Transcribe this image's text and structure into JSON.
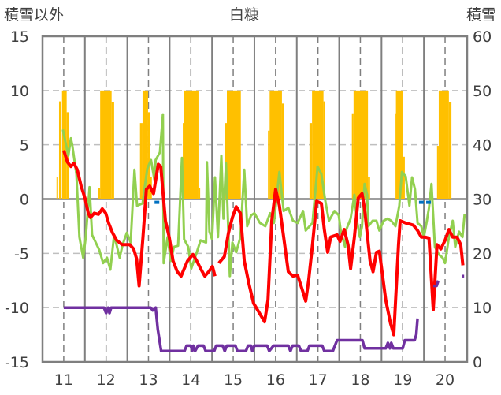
{
  "chart_data": {
    "type": "line",
    "title": "白糠",
    "ylabel_left": "積雪以外",
    "ylabel_right": "積雪",
    "xlim": [
      10.5,
      20.52
    ],
    "ylim_left": [
      -15,
      15
    ],
    "ylim_right": [
      0,
      60
    ],
    "x_ticks": [
      11,
      12,
      13,
      14,
      15,
      16,
      17,
      18,
      19,
      20
    ],
    "x_tick_labels": [
      "11",
      "12",
      "13",
      "14",
      "15",
      "16",
      "17",
      "18",
      "19",
      "20"
    ],
    "y_left_ticks": [
      15,
      10,
      5,
      0,
      -5,
      -10,
      -15
    ],
    "y_left_tick_labels": [
      "15",
      "10",
      "5",
      "0",
      "-5",
      "-10",
      "-15"
    ],
    "y_right_ticks": [
      60,
      50,
      40,
      30,
      20,
      10,
      0
    ],
    "y_right_tick_labels": [
      "60",
      "50",
      "40",
      "30",
      "20",
      "10",
      "0"
    ],
    "grid": true,
    "colors": {
      "sunshine": "#FFC000",
      "temperature": "#FF0000",
      "other": "#92D050",
      "snow": "#7030A0",
      "precip": "#0070C0",
      "grid": "#7F7F7F"
    },
    "sunshine_bars": [
      [
        10.83,
        10.85,
        2
      ],
      [
        10.89,
        10.93,
        9
      ],
      [
        10.96,
        11.07,
        10
      ],
      [
        11.07,
        11.13,
        8
      ],
      [
        11.82,
        11.86,
        1
      ],
      [
        11.86,
        12.13,
        10
      ],
      [
        12.13,
        12.19,
        8.9
      ],
      [
        12.8,
        12.86,
        7
      ],
      [
        12.86,
        12.99,
        10
      ],
      [
        12.99,
        13.03,
        8
      ],
      [
        13.03,
        13.08,
        2
      ],
      [
        13.81,
        13.84,
        7
      ],
      [
        13.84,
        14.18,
        10
      ],
      [
        14.18,
        14.22,
        1
      ],
      [
        14.81,
        14.85,
        7
      ],
      [
        14.85,
        15.18,
        10
      ],
      [
        15.82,
        15.86,
        6.3
      ],
      [
        15.86,
        16.15,
        10
      ],
      [
        16.15,
        16.19,
        8.8
      ],
      [
        16.8,
        16.86,
        7
      ],
      [
        16.86,
        17.13,
        10
      ],
      [
        17.13,
        17.17,
        9
      ],
      [
        17.8,
        17.84,
        7.9
      ],
      [
        17.84,
        18.18,
        10
      ],
      [
        18.18,
        18.23,
        2
      ],
      [
        18.81,
        18.84,
        7.9
      ],
      [
        18.84,
        19.01,
        10
      ],
      [
        19.01,
        19.05,
        3.9
      ],
      [
        19.81,
        19.85,
        4.9
      ],
      [
        19.85,
        20.09,
        10
      ],
      [
        20.09,
        20.15,
        8.9
      ]
    ],
    "temperature": [
      [
        11.0,
        4.5
      ],
      [
        11.09,
        3.4
      ],
      [
        11.17,
        3.0
      ],
      [
        11.24,
        3.3
      ],
      [
        11.32,
        2.7
      ],
      [
        11.41,
        1.2
      ],
      [
        11.5,
        0.1
      ],
      [
        11.58,
        -1.3
      ],
      [
        11.63,
        -1.7
      ],
      [
        11.72,
        -1.3
      ],
      [
        11.82,
        -1.4
      ],
      [
        11.91,
        -0.9
      ],
      [
        11.99,
        -1.3
      ],
      [
        12.06,
        -2.2
      ],
      [
        12.15,
        -3.1
      ],
      [
        12.25,
        -3.8
      ],
      [
        12.38,
        -4.2
      ],
      [
        12.56,
        -4.2
      ],
      [
        12.65,
        -4.6
      ],
      [
        12.72,
        -5.5
      ],
      [
        12.78,
        -8.0
      ],
      [
        12.87,
        -3.5
      ],
      [
        12.95,
        0.9
      ],
      [
        13.03,
        1.2
      ],
      [
        13.12,
        0.5
      ],
      [
        13.23,
        3.2
      ],
      [
        13.29,
        3.0
      ],
      [
        13.4,
        -2.0
      ],
      [
        13.49,
        -3.5
      ],
      [
        13.58,
        -5.7
      ],
      [
        13.68,
        -6.7
      ],
      [
        13.77,
        -7.1
      ],
      [
        13.92,
        -5.7
      ],
      [
        14.05,
        -5.1
      ],
      [
        14.14,
        -5.7
      ],
      [
        14.23,
        -6.4
      ],
      [
        14.33,
        -7.1
      ],
      [
        14.42,
        -6.7
      ],
      [
        14.51,
        -6.2
      ],
      [
        14.57,
        -7.1
      ],
      null,
      [
        14.66,
        -5.9
      ],
      [
        14.79,
        -5.3
      ],
      [
        14.89,
        -3.1
      ],
      [
        14.98,
        -1.7
      ],
      [
        15.07,
        -0.7
      ],
      [
        15.17,
        -1.3
      ],
      [
        15.26,
        -5.7
      ],
      [
        15.37,
        -7.8
      ],
      [
        15.48,
        -9.6
      ],
      [
        15.62,
        -10.5
      ],
      [
        15.74,
        -11.3
      ],
      [
        15.82,
        -9.3
      ],
      [
        15.91,
        -2.0
      ],
      [
        16.0,
        0.9
      ],
      [
        16.09,
        -0.6
      ],
      [
        16.19,
        -3.5
      ],
      [
        16.3,
        -6.7
      ],
      [
        16.41,
        -7.1
      ],
      [
        16.52,
        -7.0
      ],
      [
        16.65,
        -8.6
      ],
      [
        16.71,
        -9.4
      ],
      [
        16.78,
        -7.5
      ],
      [
        16.87,
        -4.2
      ],
      [
        16.97,
        -0.2
      ],
      [
        17.08,
        -0.4
      ],
      [
        17.15,
        -2.8
      ],
      [
        17.23,
        -4.9
      ],
      [
        17.3,
        -3.5
      ],
      [
        17.45,
        -3.3
      ],
      [
        17.52,
        -3.9
      ],
      [
        17.62,
        -2.8
      ],
      [
        17.71,
        -4.2
      ],
      [
        17.77,
        -6.4
      ],
      [
        17.86,
        -3.5
      ],
      [
        17.95,
        0.1
      ],
      [
        18.04,
        0.5
      ],
      [
        18.1,
        -0.9
      ],
      [
        18.23,
        -5.7
      ],
      [
        18.3,
        -6.7
      ],
      [
        18.38,
        -4.9
      ],
      [
        18.45,
        -4.8
      ],
      [
        18.6,
        -9.3
      ],
      [
        18.71,
        -11.4
      ],
      [
        18.79,
        -12.5
      ],
      [
        18.9,
        -4.2
      ],
      [
        18.94,
        -2.0
      ],
      [
        19.07,
        -2.2
      ],
      [
        19.25,
        -2.4
      ],
      [
        19.35,
        -2.9
      ],
      [
        19.44,
        -3.5
      ],
      [
        19.53,
        -3.5
      ],
      [
        19.62,
        -3.6
      ],
      [
        19.72,
        -10.2
      ],
      [
        19.81,
        -4.2
      ],
      [
        19.9,
        -4.6
      ],
      [
        20.0,
        -3.8
      ],
      [
        20.09,
        -2.8
      ],
      [
        20.18,
        -3.5
      ],
      [
        20.28,
        -3.5
      ],
      [
        20.37,
        -4.2
      ],
      [
        20.42,
        -6.1
      ]
    ],
    "other": [
      [
        10.98,
        6.4
      ],
      [
        11.11,
        4.0
      ],
      [
        11.17,
        5.6
      ],
      [
        11.2,
        5.0
      ],
      [
        11.3,
        2.3
      ],
      [
        11.37,
        -3.5
      ],
      [
        11.46,
        -5.4
      ],
      [
        11.52,
        -3.5
      ],
      [
        11.61,
        1.1
      ],
      [
        11.67,
        -3.3
      ],
      [
        11.84,
        -4.7
      ],
      [
        11.93,
        -5.9
      ],
      [
        12.02,
        -5.4
      ],
      [
        12.1,
        -6.5
      ],
      [
        12.19,
        -3.3
      ],
      [
        12.32,
        -5.4
      ],
      [
        12.39,
        -4.2
      ],
      [
        12.49,
        -3.1
      ],
      [
        12.58,
        -4.0
      ],
      [
        12.67,
        2.7
      ],
      [
        12.73,
        -0.6
      ],
      [
        12.86,
        -0.4
      ],
      [
        12.97,
        2.8
      ],
      [
        13.06,
        3.6
      ],
      [
        13.14,
        1.8
      ],
      [
        13.17,
        3.6
      ],
      [
        13.27,
        4.3
      ],
      [
        13.34,
        7.8
      ],
      [
        13.36,
        -5.9
      ],
      [
        13.45,
        -3.5
      ],
      [
        13.53,
        -5.7
      ],
      [
        13.6,
        -4.4
      ],
      [
        13.7,
        -4.3
      ],
      [
        13.79,
        3.8
      ],
      [
        13.84,
        -3.7
      ],
      [
        13.94,
        -4.4
      ],
      [
        14.01,
        -6.4
      ],
      [
        14.14,
        -4.9
      ],
      [
        14.23,
        -3.8
      ],
      [
        14.36,
        -4.0
      ],
      [
        14.38,
        3.4
      ],
      [
        14.44,
        -3.0
      ],
      [
        14.5,
        -3.7
      ],
      [
        14.57,
        2.0
      ],
      [
        14.64,
        -3.5
      ],
      [
        14.72,
        4.0
      ],
      [
        14.77,
        -1.8
      ],
      [
        14.83,
        3.3
      ],
      [
        14.92,
        -7.1
      ],
      [
        14.98,
        -4.0
      ],
      [
        15.07,
        -4.9
      ],
      [
        15.17,
        -3.5
      ],
      [
        15.26,
        2.7
      ],
      [
        15.33,
        -2.5
      ],
      [
        15.42,
        -1.5
      ],
      [
        15.5,
        -1.3
      ],
      [
        15.63,
        -2.2
      ],
      [
        15.76,
        -2.5
      ],
      [
        15.87,
        -1.3
      ],
      [
        15.96,
        -2.2
      ],
      [
        16.09,
        2.5
      ],
      [
        16.19,
        -1.1
      ],
      [
        16.3,
        -0.8
      ],
      [
        16.41,
        -2.0
      ],
      [
        16.52,
        -2.2
      ],
      [
        16.65,
        -1.1
      ],
      [
        16.71,
        -2.9
      ],
      [
        16.87,
        -2.2
      ],
      [
        16.99,
        3.0
      ],
      [
        17.08,
        2.3
      ],
      [
        17.17,
        -0.1
      ],
      [
        17.26,
        -2.0
      ],
      [
        17.39,
        -1.1
      ],
      [
        17.49,
        -1.5
      ],
      [
        17.54,
        -3.0
      ],
      [
        17.64,
        -4.4
      ],
      [
        17.67,
        -2.8
      ],
      [
        17.77,
        -1.8
      ],
      [
        17.86,
        0.4
      ],
      [
        17.92,
        -2.0
      ],
      [
        17.99,
        -3.5
      ],
      [
        18.04,
        -2.5
      ],
      [
        18.1,
        1.4
      ],
      [
        18.16,
        0.4
      ],
      [
        18.19,
        -2.5
      ],
      [
        18.29,
        -2.0
      ],
      [
        18.38,
        -2.0
      ],
      [
        18.45,
        -2.9
      ],
      [
        18.55,
        -2.0
      ],
      [
        18.64,
        -1.8
      ],
      [
        18.73,
        -2.0
      ],
      [
        18.83,
        -2.5
      ],
      [
        18.92,
        -0.6
      ],
      [
        18.98,
        2.5
      ],
      [
        19.07,
        2.1
      ],
      [
        19.16,
        -0.6
      ],
      [
        19.22,
        2.0
      ],
      [
        19.29,
        0.9
      ],
      [
        19.35,
        -2.2
      ],
      [
        19.44,
        -2.5
      ],
      [
        19.5,
        -3.5
      ],
      [
        19.57,
        -2.0
      ],
      [
        19.62,
        -0.8
      ],
      [
        19.68,
        1.4
      ],
      [
        19.76,
        -4.4
      ],
      [
        19.85,
        -5.1
      ],
      [
        19.94,
        -5.4
      ],
      [
        20.0,
        -5.9
      ],
      [
        20.09,
        -3.5
      ],
      [
        20.18,
        -2.0
      ],
      [
        20.24,
        -4.4
      ],
      [
        20.33,
        -3.0
      ],
      [
        20.41,
        -3.5
      ],
      [
        20.46,
        -1.4
      ]
    ],
    "snow_depth": [
      [
        11.0,
        10
      ],
      [
        11.95,
        10
      ],
      [
        12.0,
        9
      ],
      [
        12.05,
        10
      ],
      [
        12.08,
        9
      ],
      [
        12.12,
        10
      ],
      [
        13.05,
        10
      ],
      [
        13.1,
        9.5
      ],
      [
        13.17,
        10
      ],
      [
        13.22,
        6
      ],
      [
        13.3,
        2
      ],
      [
        13.85,
        2
      ],
      [
        13.9,
        3
      ],
      [
        14.0,
        3
      ],
      [
        14.03,
        2
      ],
      [
        14.06,
        3
      ],
      [
        14.1,
        2
      ],
      [
        14.17,
        3
      ],
      [
        14.3,
        3
      ],
      [
        14.35,
        2
      ],
      [
        14.55,
        2
      ],
      [
        14.6,
        3
      ],
      [
        14.75,
        3
      ],
      [
        14.8,
        2
      ],
      [
        14.85,
        3
      ],
      [
        15.05,
        3
      ],
      [
        15.1,
        2
      ],
      [
        15.3,
        2
      ],
      [
        15.35,
        3
      ],
      [
        15.42,
        3
      ],
      [
        15.45,
        2
      ],
      [
        15.5,
        3
      ],
      [
        15.8,
        3
      ],
      [
        15.85,
        2
      ],
      [
        15.95,
        3
      ],
      [
        16.3,
        3
      ],
      [
        16.35,
        2
      ],
      [
        16.4,
        3
      ],
      [
        16.55,
        3
      ],
      [
        16.6,
        2
      ],
      [
        16.75,
        2
      ],
      [
        16.8,
        3
      ],
      [
        17.1,
        3
      ],
      [
        17.15,
        2
      ],
      [
        17.35,
        2
      ],
      [
        17.45,
        4
      ],
      [
        18.05,
        4
      ],
      [
        18.1,
        2.5
      ],
      [
        18.6,
        2.5
      ],
      [
        18.65,
        3.5
      ],
      [
        18.7,
        2.5
      ],
      [
        18.73,
        3.5
      ],
      [
        18.78,
        2.5
      ],
      [
        19.0,
        2.5
      ],
      [
        19.05,
        4
      ],
      [
        19.28,
        4
      ],
      [
        19.32,
        5
      ],
      [
        19.35,
        8
      ],
      null,
      [
        19.72,
        14
      ],
      [
        19.8,
        14
      ],
      [
        19.84,
        15
      ],
      null,
      [
        20.4,
        15.8
      ],
      [
        20.45,
        15.8
      ]
    ],
    "precip_marks": [
      [
        13.2,
        -0.3
      ],
      [
        19.44,
        -0.3
      ],
      [
        19.61,
        -0.3
      ]
    ]
  }
}
